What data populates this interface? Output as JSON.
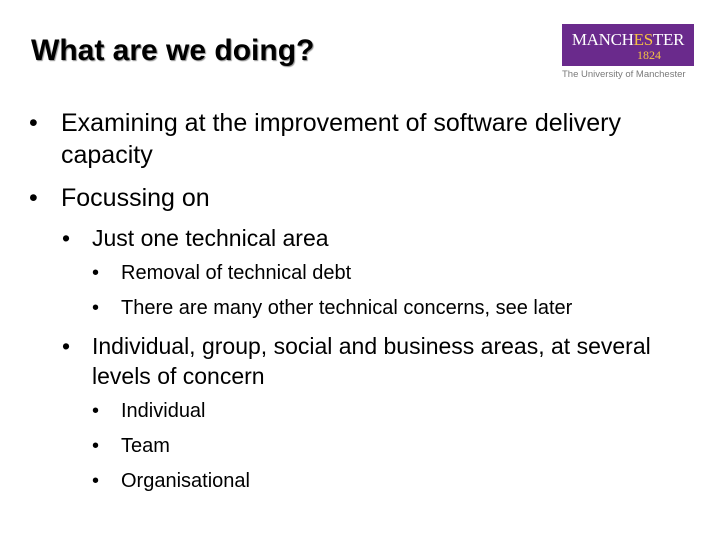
{
  "slide": {
    "title": "What are we doing?",
    "logo": {
      "word_before": "MANCH",
      "word_highlight": "ES",
      "word_after": "TER",
      "year": "1824",
      "tagline": "The University of Manchester",
      "colors": {
        "background": "#6a2a8c",
        "highlight": "#f6c343",
        "text": "#ffffff"
      }
    },
    "bullet_symbol": "•",
    "bullets": [
      {
        "level": 1,
        "text": "Examining at the improvement of software delivery capacity"
      },
      {
        "level": 1,
        "text": "Focussing on"
      },
      {
        "level": 2,
        "text": "Just one technical area"
      },
      {
        "level": 3,
        "text": "Removal of technical debt"
      },
      {
        "level": 3,
        "text": "There are many other technical concerns, see later"
      },
      {
        "level": 2,
        "text": "Individual, group, social and business areas, at several levels of concern"
      },
      {
        "level": 3,
        "text": "Individual"
      },
      {
        "level": 3,
        "text": "Team"
      },
      {
        "level": 3,
        "text": "Organisational"
      }
    ]
  }
}
